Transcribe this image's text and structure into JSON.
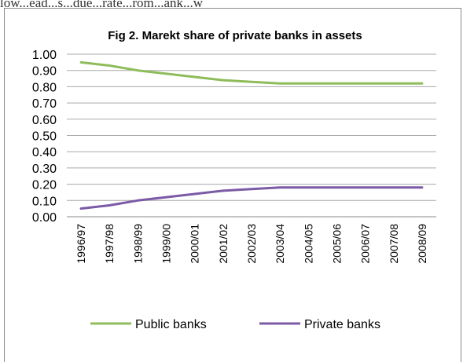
{
  "page_top_text": "low...ead...s...due...rate...rom...ank...w",
  "chart_data": {
    "type": "line",
    "title": "Fig 2.  Marekt share of private banks in assets",
    "xlabel": "",
    "ylabel": "",
    "ylim": [
      0,
      1
    ],
    "yticks": [
      "1.00",
      "0.90",
      "0.80",
      "0.70",
      "0.60",
      "0.50",
      "0.40",
      "0.30",
      "0.20",
      "0.10",
      "0.00"
    ],
    "categories": [
      "1996/97",
      "1997/98",
      "1998/99",
      "1999/00",
      "2000/01",
      "2001/02",
      "2002/03",
      "2003/04",
      "2004/05",
      "2005/06",
      "2006/07",
      "2007/08",
      "2008/09"
    ],
    "series": [
      {
        "name": "Public banks",
        "color": "#8fbc5a",
        "values": [
          0.95,
          0.93,
          0.9,
          0.88,
          0.86,
          0.84,
          0.83,
          0.82,
          0.82,
          0.82,
          0.82,
          0.82,
          0.82
        ]
      },
      {
        "name": "Private banks",
        "color": "#7b5aa6",
        "values": [
          0.05,
          0.07,
          0.1,
          0.12,
          0.14,
          0.16,
          0.17,
          0.18,
          0.18,
          0.18,
          0.18,
          0.18,
          0.18
        ]
      }
    ],
    "grid": true,
    "legend": "bottom"
  }
}
